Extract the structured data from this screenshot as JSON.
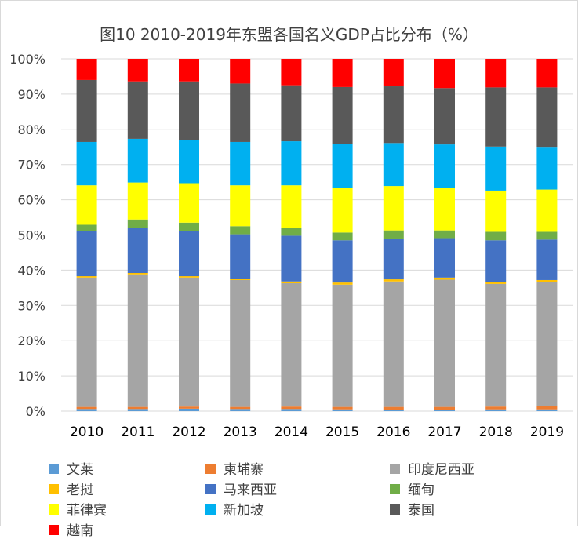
{
  "chart_data": {
    "type": "bar",
    "stacked": true,
    "title": "图10 2010-2019年东盟各国名义GDP占比分布（%）",
    "xlabel": "",
    "ylabel": "",
    "ylim": [
      0,
      100
    ],
    "y_ticks": [
      "0%",
      "10%",
      "20%",
      "30%",
      "40%",
      "50%",
      "60%",
      "70%",
      "80%",
      "90%",
      "100%"
    ],
    "categories": [
      "2010",
      "2011",
      "2012",
      "2013",
      "2014",
      "2015",
      "2016",
      "2017",
      "2018",
      "2019"
    ],
    "legend_position": "bottom",
    "series": [
      {
        "name": "文莱",
        "color": "#5b9bd5",
        "values": [
          0.6,
          0.6,
          0.7,
          0.6,
          0.6,
          0.5,
          0.4,
          0.4,
          0.5,
          0.5
        ]
      },
      {
        "name": "柬埔寨",
        "color": "#ed7d31",
        "values": [
          0.6,
          0.6,
          0.6,
          0.6,
          0.7,
          0.7,
          0.8,
          0.8,
          0.8,
          0.9
        ]
      },
      {
        "name": "印度尼西亚",
        "color": "#a5a5a5",
        "values": [
          36.7,
          37.6,
          36.6,
          36.0,
          35.0,
          34.7,
          35.6,
          36.1,
          34.8,
          35.2
        ]
      },
      {
        "name": "老挝",
        "color": "#ffc000",
        "values": [
          0.4,
          0.4,
          0.4,
          0.4,
          0.5,
          0.6,
          0.6,
          0.6,
          0.6,
          0.6
        ]
      },
      {
        "name": "马来西亚",
        "color": "#4472c4",
        "values": [
          12.8,
          12.7,
          12.8,
          12.6,
          13.0,
          12.0,
          11.6,
          11.2,
          11.8,
          11.5
        ]
      },
      {
        "name": "缅甸",
        "color": "#70ad47",
        "values": [
          1.8,
          2.5,
          2.4,
          2.3,
          2.3,
          2.2,
          2.3,
          2.2,
          2.4,
          2.2
        ]
      },
      {
        "name": "菲律宾",
        "color": "#ffff00",
        "values": [
          11.2,
          10.5,
          11.2,
          11.6,
          12.0,
          12.7,
          12.6,
          12.1,
          11.7,
          12.0
        ]
      },
      {
        "name": "新加坡",
        "color": "#00b0f0",
        "values": [
          12.3,
          12.4,
          12.2,
          12.3,
          12.5,
          12.5,
          12.2,
          12.3,
          12.5,
          11.9
        ]
      },
      {
        "name": "泰国",
        "color": "#595959",
        "values": [
          17.6,
          16.3,
          16.7,
          16.6,
          15.9,
          16.1,
          16.1,
          16.0,
          16.8,
          17.1
        ]
      },
      {
        "name": "越南",
        "color": "#ff0000",
        "values": [
          6.0,
          6.4,
          6.4,
          7.0,
          7.5,
          8.0,
          7.8,
          8.3,
          8.1,
          8.1
        ]
      }
    ]
  }
}
